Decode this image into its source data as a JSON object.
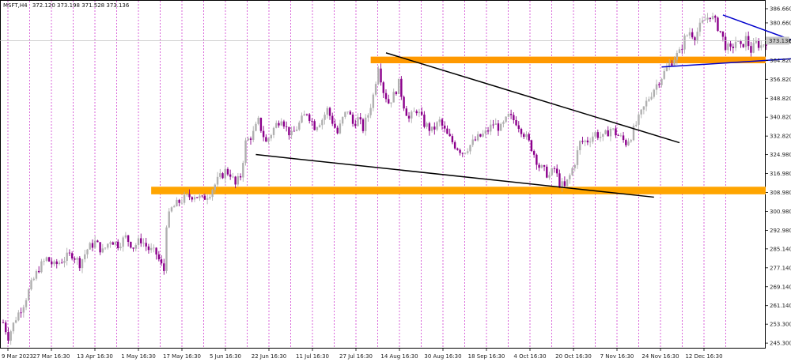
{
  "chart_data": {
    "type": "candlestick",
    "header": {
      "symbol": "MSFT,H4",
      "ohlc": "372.120 373.198 371.528 373.136"
    },
    "last_price": 373.136,
    "last_price_label": "373.136",
    "ylim": [
      243.0,
      390.0
    ],
    "y_ticks": [
      {
        "value": 386.66,
        "label": "386.660"
      },
      {
        "value": 380.66,
        "label": "380.660"
      },
      {
        "value": 372.74,
        "label": "372.740"
      },
      {
        "value": 364.82,
        "label": "364.820"
      },
      {
        "value": 356.82,
        "label": "356.820"
      },
      {
        "value": 348.82,
        "label": "348.820"
      },
      {
        "value": 340.82,
        "label": "340.820"
      },
      {
        "value": 332.82,
        "label": "332.820"
      },
      {
        "value": 324.98,
        "label": "324.980"
      },
      {
        "value": 316.98,
        "label": "316.980"
      },
      {
        "value": 308.98,
        "label": "308.980"
      },
      {
        "value": 300.98,
        "label": "300.980"
      },
      {
        "value": 292.98,
        "label": "292.980"
      },
      {
        "value": 285.14,
        "label": "285.140"
      },
      {
        "value": 277.14,
        "label": "277.140"
      },
      {
        "value": 269.14,
        "label": "269.140"
      },
      {
        "value": 261.14,
        "label": "261.140"
      },
      {
        "value": 253.3,
        "label": "253.300"
      },
      {
        "value": 245.3,
        "label": "245.300"
      }
    ],
    "x_ticks": [
      "9 Mar 2023",
      "27 Mar 16:30",
      "13 Apr 16:30",
      "1 May 16:30",
      "17 May 16:30",
      "5 Jun 16:30",
      "22 Jun 16:30",
      "11 Jul 16:30",
      "27 Jul 16:30",
      "14 Aug 16:30",
      "30 Aug 16:30",
      "18 Sep 16:30",
      "4 Oct 16:30",
      "20 Oct 16:30",
      "7 Nov 16:30",
      "24 Nov 16:30",
      "12 Dec 16:30"
    ],
    "price_path": [
      [
        0,
        254
      ],
      [
        2,
        248
      ],
      [
        5,
        256
      ],
      [
        8,
        262
      ],
      [
        11,
        270
      ],
      [
        14,
        277
      ],
      [
        17,
        281
      ],
      [
        20,
        278
      ],
      [
        24,
        281
      ],
      [
        27,
        283
      ],
      [
        30,
        279
      ],
      [
        33,
        285
      ],
      [
        36,
        288
      ],
      [
        39,
        284
      ],
      [
        42,
        289
      ],
      [
        45,
        287
      ],
      [
        48,
        290
      ],
      [
        51,
        286
      ],
      [
        54,
        289
      ],
      [
        57,
        285
      ],
      [
        60,
        283
      ],
      [
        62,
        278
      ],
      [
        63,
        276
      ],
      [
        64,
        296
      ],
      [
        66,
        302
      ],
      [
        69,
        305
      ],
      [
        72,
        307
      ],
      [
        75,
        308
      ],
      [
        78,
        306
      ],
      [
        81,
        309
      ],
      [
        84,
        314
      ],
      [
        87,
        318
      ],
      [
        89,
        317
      ],
      [
        91,
        312
      ],
      [
        93,
        316
      ],
      [
        95,
        330
      ],
      [
        98,
        334
      ],
      [
        100,
        339
      ],
      [
        103,
        330
      ],
      [
        106,
        336
      ],
      [
        109,
        341
      ],
      [
        111,
        336
      ],
      [
        113,
        333
      ],
      [
        116,
        338
      ],
      [
        119,
        343
      ],
      [
        122,
        337
      ],
      [
        125,
        340
      ],
      [
        127,
        344
      ],
      [
        129,
        339
      ],
      [
        131,
        334
      ],
      [
        133,
        340
      ],
      [
        135,
        344
      ],
      [
        137,
        338
      ],
      [
        139,
        340
      ],
      [
        141,
        336
      ],
      [
        143,
        342
      ],
      [
        145,
        350
      ],
      [
        147,
        363
      ],
      [
        149,
        352
      ],
      [
        151,
        347
      ],
      [
        153,
        350
      ],
      [
        155,
        355
      ],
      [
        157,
        346
      ],
      [
        159,
        340
      ],
      [
        162,
        344
      ],
      [
        165,
        338
      ],
      [
        168,
        335
      ],
      [
        171,
        339
      ],
      [
        174,
        333
      ],
      [
        177,
        329
      ],
      [
        180,
        326
      ],
      [
        183,
        329
      ],
      [
        186,
        332
      ],
      [
        189,
        334
      ],
      [
        192,
        338
      ],
      [
        195,
        336
      ],
      [
        198,
        341
      ],
      [
        201,
        339
      ],
      [
        204,
        334
      ],
      [
        207,
        328
      ],
      [
        210,
        320
      ],
      [
        212,
        318
      ],
      [
        214,
        316
      ],
      [
        216,
        319
      ],
      [
        218,
        313
      ],
      [
        220,
        311
      ],
      [
        222,
        316
      ],
      [
        224,
        322
      ],
      [
        226,
        330
      ],
      [
        229,
        331
      ],
      [
        232,
        334
      ],
      [
        235,
        332
      ],
      [
        238,
        336
      ],
      [
        241,
        333
      ],
      [
        244,
        330
      ],
      [
        246,
        333
      ],
      [
        249,
        340
      ],
      [
        252,
        347
      ],
      [
        255,
        353
      ],
      [
        258,
        358
      ],
      [
        261,
        363
      ],
      [
        263,
        366
      ],
      [
        265,
        368
      ],
      [
        267,
        374
      ],
      [
        269,
        377
      ],
      [
        271,
        375
      ],
      [
        273,
        379
      ],
      [
        275,
        382
      ],
      [
        277,
        384
      ],
      [
        279,
        381
      ],
      [
        281,
        377
      ],
      [
        283,
        371
      ],
      [
        285,
        369
      ],
      [
        287,
        373
      ],
      [
        289,
        370
      ],
      [
        291,
        374
      ],
      [
        293,
        369
      ],
      [
        295,
        372
      ],
      [
        297,
        371
      ],
      [
        299,
        373
      ]
    ],
    "trend_lines": [
      {
        "color": "#000000",
        "points": [
          [
            150,
            368
          ],
          [
            265,
            330
          ]
        ]
      },
      {
        "color": "#000000",
        "points": [
          [
            99,
            325
          ],
          [
            255,
            307
          ]
        ]
      },
      {
        "color": "#0000cc",
        "points": [
          [
            282,
            384
          ],
          [
            310,
            373
          ]
        ]
      },
      {
        "color": "#0000cc",
        "points": [
          [
            258,
            362
          ],
          [
            316,
            366
          ]
        ]
      }
    ],
    "zones": [
      {
        "color": "#ff9900",
        "y_from": 363.6,
        "y_to": 366.4,
        "x_from": 144,
        "x_to": 999
      },
      {
        "color": "#ffa500",
        "y_from": 308.2,
        "y_to": 311.4,
        "x_from": 58,
        "x_to": 999
      }
    ],
    "bull_color": "#b0b0b0",
    "bear_color": "#8b008b",
    "grid": true
  }
}
